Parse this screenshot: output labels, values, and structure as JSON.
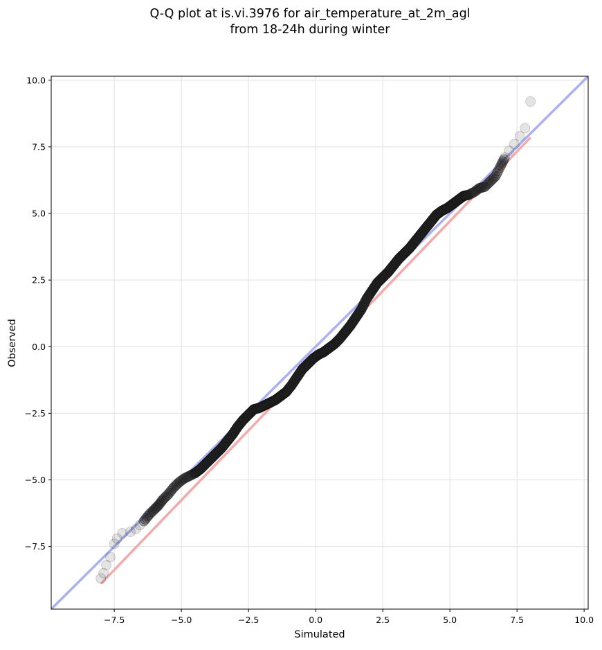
{
  "chart_data": {
    "type": "scatter",
    "title_lines": [
      "Q-Q plot at is.vi.3976 for air_temperature_at_2m_agl",
      "from 18-24h during winter"
    ],
    "xlabel": "Simulated",
    "ylabel": "Observed",
    "xlim": [
      -9.85,
      10.15
    ],
    "ylim": [
      -9.85,
      10.15
    ],
    "grid": true,
    "x_ticks": [
      -7.5,
      -5.0,
      -2.5,
      0.0,
      2.5,
      5.0,
      7.5,
      10.0
    ],
    "y_ticks": [
      -7.5,
      -5.0,
      -2.5,
      0.0,
      2.5,
      5.0,
      7.5,
      10.0
    ],
    "x_tick_labels": [
      "−7.5",
      "−5.0",
      "−2.5",
      "0.0",
      "2.5",
      "5.0",
      "7.5",
      "10.0"
    ],
    "y_tick_labels": [
      "−7.5",
      "−5.0",
      "−2.5",
      "0.0",
      "2.5",
      "5.0",
      "7.5",
      "10.0"
    ],
    "reference_lines": [
      {
        "kind": "identity",
        "color": "#aab0f0",
        "x": [
          -9.85,
          10.15
        ],
        "y": [
          -9.85,
          10.15
        ]
      },
      {
        "kind": "fit",
        "color": "#f2aaaa",
        "x": [
          -8.0,
          8.0
        ],
        "y": [
          -8.9,
          7.85
        ]
      }
    ],
    "series": [
      {
        "kind": "quantiles",
        "x": [
          -8.0,
          -7.9,
          -7.8,
          -7.65,
          -7.5,
          -7.4,
          -7.2,
          -6.9,
          -6.7,
          -6.55,
          -6.4,
          -6.2,
          -6.0,
          -5.85,
          -5.7,
          -5.5,
          -5.3,
          -5.1,
          -4.9,
          -4.7,
          -4.5,
          -4.3,
          -4.1,
          -3.9,
          -3.7,
          -3.5,
          -3.3,
          -3.1,
          -2.9,
          -2.7,
          -2.5,
          -2.3,
          -2.1,
          -1.9,
          -1.7,
          -1.5,
          -1.3,
          -1.1,
          -0.9,
          -0.7,
          -0.5,
          -0.3,
          -0.1,
          0.1,
          0.3,
          0.5,
          0.7,
          0.9,
          1.1,
          1.3,
          1.5,
          1.7,
          1.9,
          2.1,
          2.3,
          2.5,
          2.7,
          2.9,
          3.1,
          3.3,
          3.5,
          3.7,
          3.9,
          4.1,
          4.3,
          4.5,
          4.7,
          4.9,
          5.1,
          5.3,
          5.5,
          5.7,
          5.9,
          6.1,
          6.3,
          6.5,
          6.7,
          6.9,
          7.05,
          7.2,
          7.4,
          7.6,
          7.8,
          8.0
        ],
        "y": [
          -8.7,
          -8.5,
          -8.2,
          -7.9,
          -7.4,
          -7.2,
          -7.0,
          -6.95,
          -6.85,
          -6.7,
          -6.55,
          -6.3,
          -6.1,
          -5.95,
          -5.75,
          -5.55,
          -5.3,
          -5.1,
          -4.95,
          -4.85,
          -4.75,
          -4.6,
          -4.4,
          -4.2,
          -4.0,
          -3.8,
          -3.55,
          -3.3,
          -3.0,
          -2.75,
          -2.55,
          -2.35,
          -2.3,
          -2.2,
          -2.1,
          -2.0,
          -1.85,
          -1.7,
          -1.45,
          -1.15,
          -0.85,
          -0.65,
          -0.45,
          -0.3,
          -0.2,
          -0.05,
          0.1,
          0.3,
          0.55,
          0.8,
          1.1,
          1.4,
          1.8,
          2.1,
          2.4,
          2.6,
          2.8,
          3.05,
          3.3,
          3.5,
          3.7,
          3.95,
          4.2,
          4.45,
          4.7,
          4.95,
          5.1,
          5.2,
          5.35,
          5.5,
          5.65,
          5.7,
          5.8,
          5.95,
          6.0,
          6.2,
          6.4,
          6.8,
          7.1,
          7.35,
          7.6,
          7.9,
          8.2,
          9.2
        ]
      }
    ]
  }
}
